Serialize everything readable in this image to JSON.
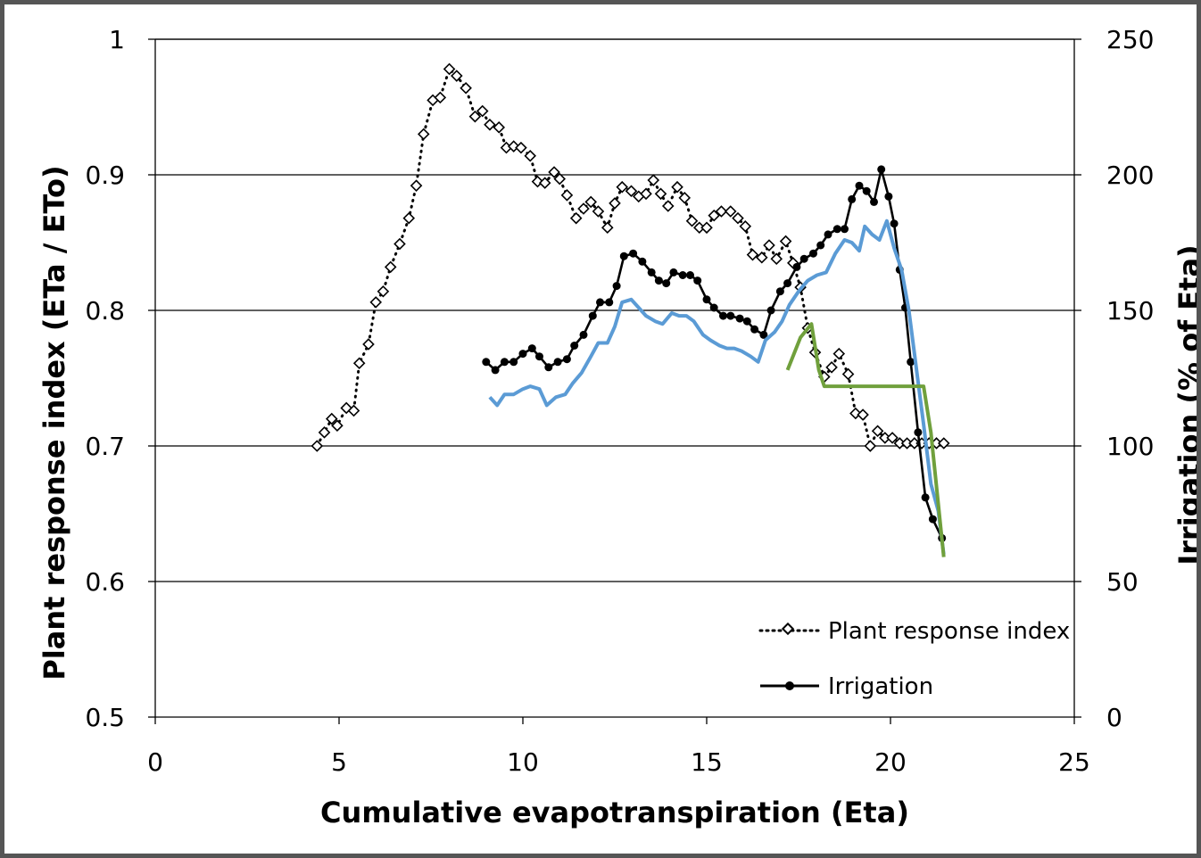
{
  "chart_data": {
    "type": "line",
    "xlabel": "Cumulative evapotranspiration (Eta)",
    "ylabel": "Plant response index (ETa / ETo)",
    "y2label": "Irrigation (% of Eta)",
    "xlim": [
      0,
      25
    ],
    "ylim": [
      0.5,
      1
    ],
    "y2lim": [
      0,
      250
    ],
    "xticks": [
      "0",
      "5",
      "10",
      "15",
      "20",
      "25"
    ],
    "yticks": [
      "0.5",
      "0.6",
      "0.7",
      "0.8",
      "0.9",
      "1"
    ],
    "y2ticks": [
      "0",
      "50",
      "100",
      "150",
      "200",
      "250"
    ],
    "grid": "horizontal",
    "legend_position": "bottom-right",
    "colors": {
      "plant_response": "#000000",
      "irrigation": "#000000",
      "blue_line": "#5b9bd5",
      "green_line": "#70a03c",
      "axis": "#000000",
      "gridline": "#000000",
      "frame": "#555555"
    },
    "series": [
      {
        "name": "Plant response index",
        "axis": "left",
        "style": "dotted-diamond",
        "x": [
          4.4,
          4.6,
          4.8,
          4.95,
          5.2,
          5.4,
          5.55,
          5.8,
          6.0,
          6.2,
          6.4,
          6.65,
          6.9,
          7.1,
          7.3,
          7.55,
          7.75,
          8.0,
          8.2,
          8.45,
          8.7,
          8.9,
          9.1,
          9.35,
          9.55,
          9.75,
          9.95,
          10.2,
          10.4,
          10.6,
          10.85,
          11.0,
          11.2,
          11.45,
          11.65,
          11.85,
          12.05,
          12.3,
          12.5,
          12.7,
          12.95,
          13.15,
          13.35,
          13.55,
          13.75,
          13.95,
          14.2,
          14.4,
          14.6,
          14.8,
          15.0,
          15.2,
          15.4,
          15.65,
          15.85,
          16.05,
          16.25,
          16.5,
          16.7,
          16.9,
          17.15,
          17.35,
          17.55,
          17.75,
          17.95,
          18.2,
          18.4,
          18.6,
          18.85,
          19.05,
          19.25,
          19.45,
          19.65,
          19.85,
          20.05,
          20.25,
          20.45,
          20.65,
          20.85,
          21.05,
          21.25,
          21.45
        ],
        "y": [
          0.7,
          0.71,
          0.72,
          0.715,
          0.728,
          0.726,
          0.761,
          0.775,
          0.806,
          0.814,
          0.832,
          0.849,
          0.868,
          0.892,
          0.93,
          0.955,
          0.957,
          0.978,
          0.973,
          0.964,
          0.943,
          0.947,
          0.937,
          0.935,
          0.92,
          0.921,
          0.92,
          0.914,
          0.895,
          0.894,
          0.902,
          0.897,
          0.885,
          0.868,
          0.875,
          0.88,
          0.873,
          0.861,
          0.879,
          0.891,
          0.888,
          0.884,
          0.886,
          0.896,
          0.886,
          0.877,
          0.891,
          0.883,
          0.866,
          0.861,
          0.861,
          0.87,
          0.873,
          0.873,
          0.868,
          0.862,
          0.841,
          0.839,
          0.848,
          0.838,
          0.851,
          0.835,
          0.817,
          0.787,
          0.769,
          0.751,
          0.758,
          0.768,
          0.753,
          0.724,
          0.723,
          0.7,
          0.711,
          0.706,
          0.706,
          0.702,
          0.702,
          0.702,
          0.702,
          0.702,
          0.702,
          0.702
        ]
      },
      {
        "name": "Irrigation",
        "axis": "right",
        "style": "solid-dot",
        "x": [
          9.0,
          9.25,
          9.5,
          9.75,
          10.0,
          10.25,
          10.45,
          10.7,
          10.95,
          11.2,
          11.4,
          11.65,
          11.9,
          12.1,
          12.35,
          12.55,
          12.75,
          13.0,
          13.25,
          13.5,
          13.7,
          13.9,
          14.1,
          14.35,
          14.55,
          14.75,
          15.0,
          15.2,
          15.45,
          15.65,
          15.9,
          16.1,
          16.3,
          16.55,
          16.75,
          17.0,
          17.2,
          17.45,
          17.65,
          17.9,
          18.1,
          18.3,
          18.55,
          18.75,
          18.95,
          19.15,
          19.35,
          19.55,
          19.75,
          19.95,
          20.1,
          20.25,
          20.4,
          20.55,
          20.75,
          20.95,
          21.15,
          21.4
        ],
        "y": [
          131,
          128,
          131,
          131,
          134,
          136,
          133,
          129,
          131,
          132,
          137,
          141,
          148,
          153,
          153,
          159,
          170,
          171,
          168,
          164,
          161,
          160,
          164,
          163,
          163,
          161,
          154,
          151,
          148,
          148,
          147,
          146,
          143,
          141,
          150,
          157,
          160,
          166,
          169,
          171,
          174,
          178,
          180,
          180,
          191,
          196,
          194,
          190,
          202,
          192,
          182,
          165,
          151,
          131,
          105,
          81,
          73,
          66
        ]
      },
      {
        "name": "",
        "axis": "right",
        "style": "solid-blue",
        "x": [
          9.1,
          9.3,
          9.5,
          9.75,
          10.0,
          10.2,
          10.45,
          10.65,
          10.9,
          11.15,
          11.35,
          11.6,
          11.85,
          12.05,
          12.3,
          12.5,
          12.7,
          12.95,
          13.15,
          13.35,
          13.6,
          13.8,
          14.05,
          14.25,
          14.45,
          14.65,
          14.9,
          15.1,
          15.35,
          15.55,
          15.75,
          15.95,
          16.2,
          16.4,
          16.6,
          16.85,
          17.05,
          17.25,
          17.5,
          17.75,
          18.0,
          18.25,
          18.5,
          18.75,
          18.95,
          19.15,
          19.3,
          19.5,
          19.7,
          19.9,
          20.1,
          20.3,
          20.5,
          20.7,
          20.9,
          21.1,
          21.3,
          21.45
        ],
        "y": [
          118,
          115,
          119,
          119,
          121,
          122,
          121,
          115,
          118,
          119,
          123,
          127,
          133,
          138,
          138,
          144,
          153,
          154,
          151,
          148,
          146,
          145,
          149,
          148,
          148,
          146,
          141,
          139,
          137,
          136,
          136,
          135,
          133,
          131,
          139,
          142,
          146,
          152,
          157,
          161,
          163,
          164,
          171,
          176,
          175,
          172,
          181,
          178,
          176,
          183,
          173,
          165,
          150,
          129,
          108,
          86,
          76,
          60
        ]
      },
      {
        "name": "",
        "axis": "right",
        "style": "solid-green",
        "x": [
          17.2,
          17.55,
          17.85,
          18.05,
          18.2,
          20.55,
          20.9,
          21.1,
          21.45
        ],
        "y": [
          128,
          140,
          145,
          128,
          122,
          122,
          122,
          105,
          59
        ]
      }
    ]
  }
}
